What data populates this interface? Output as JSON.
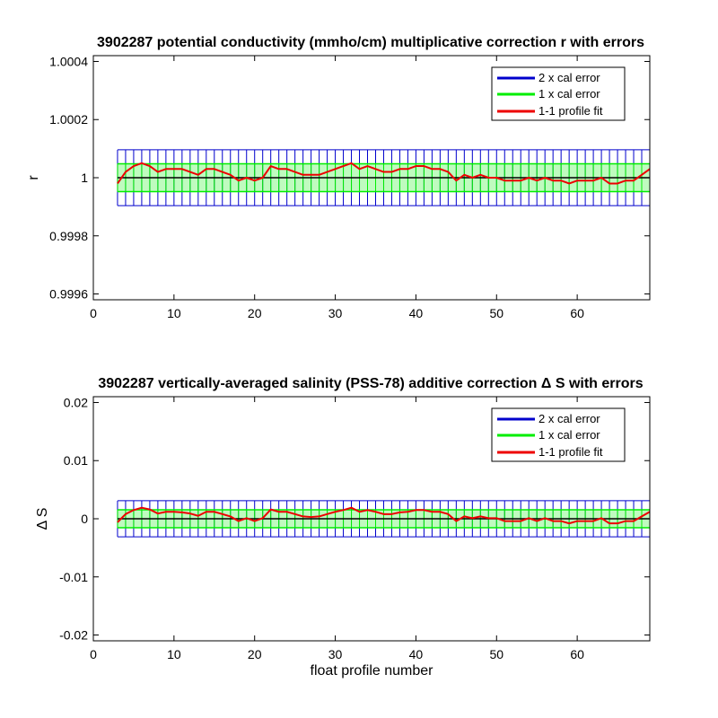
{
  "colors": {
    "two_cal": "#0000cc",
    "one_cal": "#00ee00",
    "fit": "#ee0000",
    "zero": "#000000"
  },
  "chart_data": [
    {
      "type": "line",
      "title": "3902287 potential conductivity (mmho/cm) multiplicative correction r with errors",
      "xlabel": "",
      "ylabel": "r",
      "xlim": [
        0,
        69
      ],
      "ylim": [
        0.99958,
        1.00042
      ],
      "xticks": [
        0,
        10,
        20,
        30,
        40,
        50,
        60
      ],
      "xtick_labels": [
        "0",
        "10",
        "20",
        "30",
        "40",
        "50",
        "60"
      ],
      "yticks": [
        0.9996,
        0.9998,
        1,
        1.0002,
        1.0004
      ],
      "ytick_labels": [
        "0.9996",
        "0.9998",
        "1",
        "1.0002",
        "1.0004"
      ],
      "baseline": 1,
      "two_cal_error": 9.6e-05,
      "one_cal_error": 4.8e-05,
      "x_start": 3,
      "x_end": 69,
      "legend_position": "top-right",
      "legend": [
        "2 x cal error",
        "1 x cal error",
        "1-1 profile fit"
      ],
      "series": [
        {
          "name": "1-1 profile fit",
          "x": [
            3,
            4,
            5,
            6,
            7,
            8,
            9,
            10,
            11,
            12,
            13,
            14,
            15,
            16,
            17,
            18,
            19,
            20,
            21,
            22,
            23,
            24,
            25,
            26,
            27,
            28,
            29,
            30,
            31,
            32,
            33,
            34,
            35,
            36,
            37,
            38,
            39,
            40,
            41,
            42,
            43,
            44,
            45,
            46,
            47,
            48,
            49,
            50,
            51,
            52,
            53,
            54,
            55,
            56,
            57,
            58,
            59,
            60,
            61,
            62,
            63,
            64,
            65,
            66,
            67,
            68,
            69
          ],
          "y": [
            0.99998,
            1.00002,
            1.00004,
            1.00005,
            1.00004,
            1.00002,
            1.00003,
            1.00003,
            1.00003,
            1.00002,
            1.00001,
            1.00003,
            1.00003,
            1.00002,
            1.00001,
            0.99999,
            1.0,
            0.99999,
            1.0,
            1.00004,
            1.00003,
            1.00003,
            1.00002,
            1.00001,
            1.00001,
            1.00001,
            1.00002,
            1.00003,
            1.00004,
            1.00005,
            1.00003,
            1.00004,
            1.00003,
            1.00002,
            1.00002,
            1.00003,
            1.00003,
            1.00004,
            1.00004,
            1.00003,
            1.00003,
            1.00002,
            0.99999,
            1.00001,
            1.0,
            1.00001,
            1.0,
            1.0,
            0.99999,
            0.99999,
            0.99999,
            1.0,
            0.99999,
            1.0,
            0.99999,
            0.99999,
            0.99998,
            0.99999,
            0.99999,
            0.99999,
            1.0,
            0.99998,
            0.99998,
            0.99999,
            0.99999,
            1.00001,
            1.00003
          ]
        }
      ]
    },
    {
      "type": "line",
      "title": "3902287 vertically-averaged salinity (PSS-78) additive correction Δ S with errors",
      "xlabel": "float profile number",
      "ylabel": "Δ S",
      "xlim": [
        0,
        69
      ],
      "ylim": [
        -0.021,
        0.021
      ],
      "xticks": [
        0,
        10,
        20,
        30,
        40,
        50,
        60
      ],
      "xtick_labels": [
        "0",
        "10",
        "20",
        "30",
        "40",
        "50",
        "60"
      ],
      "yticks": [
        -0.02,
        -0.01,
        0,
        0.01,
        0.02
      ],
      "ytick_labels": [
        "-0.02",
        "-0.01",
        "0",
        "0.01",
        "0.02"
      ],
      "baseline": 0,
      "two_cal_error": 0.0031,
      "one_cal_error": 0.00155,
      "x_start": 3,
      "x_end": 69,
      "legend_position": "top-right",
      "legend": [
        "2 x cal error",
        "1 x cal error",
        "1-1 profile fit"
      ],
      "series": [
        {
          "name": "1-1 profile fit",
          "x": [
            3,
            4,
            5,
            6,
            7,
            8,
            9,
            10,
            11,
            12,
            13,
            14,
            15,
            16,
            17,
            18,
            19,
            20,
            21,
            22,
            23,
            24,
            25,
            26,
            27,
            28,
            29,
            30,
            31,
            32,
            33,
            34,
            35,
            36,
            37,
            38,
            39,
            40,
            41,
            42,
            43,
            44,
            45,
            46,
            47,
            48,
            49,
            50,
            51,
            52,
            53,
            54,
            55,
            56,
            57,
            58,
            59,
            60,
            61,
            62,
            63,
            64,
            65,
            66,
            67,
            68,
            69
          ],
          "y": [
            -0.0006,
            0.0008,
            0.0015,
            0.0019,
            0.0016,
            0.0009,
            0.0012,
            0.0012,
            0.0011,
            0.0009,
            0.0005,
            0.0012,
            0.0012,
            0.0008,
            0.0004,
            -0.0004,
            0.0001,
            -0.0004,
            0.0001,
            0.0016,
            0.0012,
            0.0012,
            0.0008,
            0.0004,
            0.0003,
            0.0004,
            0.0008,
            0.0012,
            0.0015,
            0.0019,
            0.0012,
            0.0015,
            0.0012,
            0.0008,
            0.0008,
            0.0011,
            0.0012,
            0.0015,
            0.0015,
            0.0012,
            0.0012,
            0.0008,
            -0.0004,
            0.0004,
            0.0001,
            0.0004,
            0.0001,
            0.0001,
            -0.0004,
            -0.0004,
            -0.0004,
            0.0001,
            -0.0004,
            0.0001,
            -0.0004,
            -0.0004,
            -0.0008,
            -0.0004,
            -0.0004,
            -0.0004,
            0.0001,
            -0.0008,
            -0.0008,
            -0.0004,
            -0.0004,
            0.0004,
            0.0012
          ]
        }
      ]
    }
  ]
}
